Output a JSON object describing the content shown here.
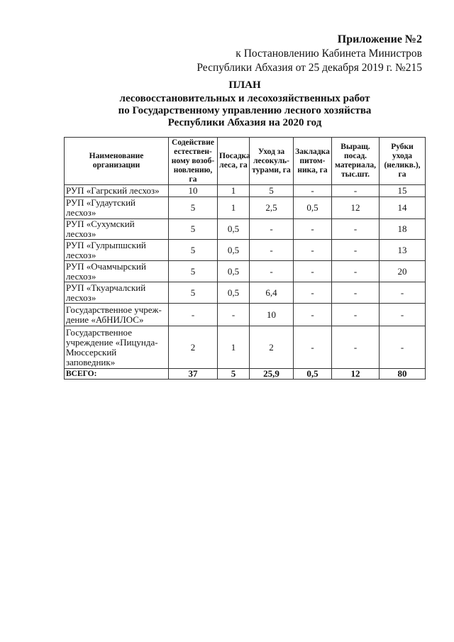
{
  "header": {
    "appendix": "Приложение №2",
    "line1": "к Постановлению Кабинета Министров",
    "line2": "Республики Абхазия от 25 декабря 2019 г. №215"
  },
  "title": {
    "line1": "ПЛАН",
    "line2": "лесовосстановительных и лесохозяйственных работ",
    "line3": "по Государственному управлению  лесного хозяйства",
    "line4": "Республики Абхазия на 2020 год"
  },
  "table": {
    "columns": [
      "Наименование организации",
      "Содействие естествен-ному возоб-новлению, га",
      "Посадка леса, га",
      "Уход за лесокуль-турами, га",
      "Закладка питом-ника, га",
      "Выращ. посад. материала, тыс.шт.",
      "Рубки ухода (неликв.), га"
    ],
    "rows": [
      [
        "РУП «Гагрский лесхоз»",
        "10",
        "1",
        "5",
        "-",
        "-",
        "15"
      ],
      [
        "РУП «Гудаутский лесхоз»",
        "5",
        "1",
        "2,5",
        "0,5",
        "12",
        "14"
      ],
      [
        "РУП «Сухумский лесхоз»",
        "5",
        "0,5",
        "-",
        "-",
        "-",
        "18"
      ],
      [
        "РУП «Гулрыпшский лесхоз»",
        "5",
        "0,5",
        "-",
        "-",
        "-",
        "13"
      ],
      [
        "РУП «Очамчырский лесхоз»",
        "5",
        "0,5",
        "-",
        "-",
        "-",
        "20"
      ],
      [
        "РУП «Ткуарчалский лесхоз»",
        "5",
        "0,5",
        "6,4",
        "-",
        "-",
        "-"
      ],
      [
        "Государственное учреж-дение «АбНИЛОС»",
        "-",
        "-",
        "10",
        "-",
        "-",
        "-"
      ],
      [
        "Государственное учреждение «Пицунда-Мюссерский заповедник»",
        "2",
        "1",
        "2",
        "-",
        "-",
        "-"
      ]
    ],
    "total": [
      "ВСЕГО:",
      "37",
      "5",
      "25,9",
      "0,5",
      "12",
      "80"
    ]
  }
}
